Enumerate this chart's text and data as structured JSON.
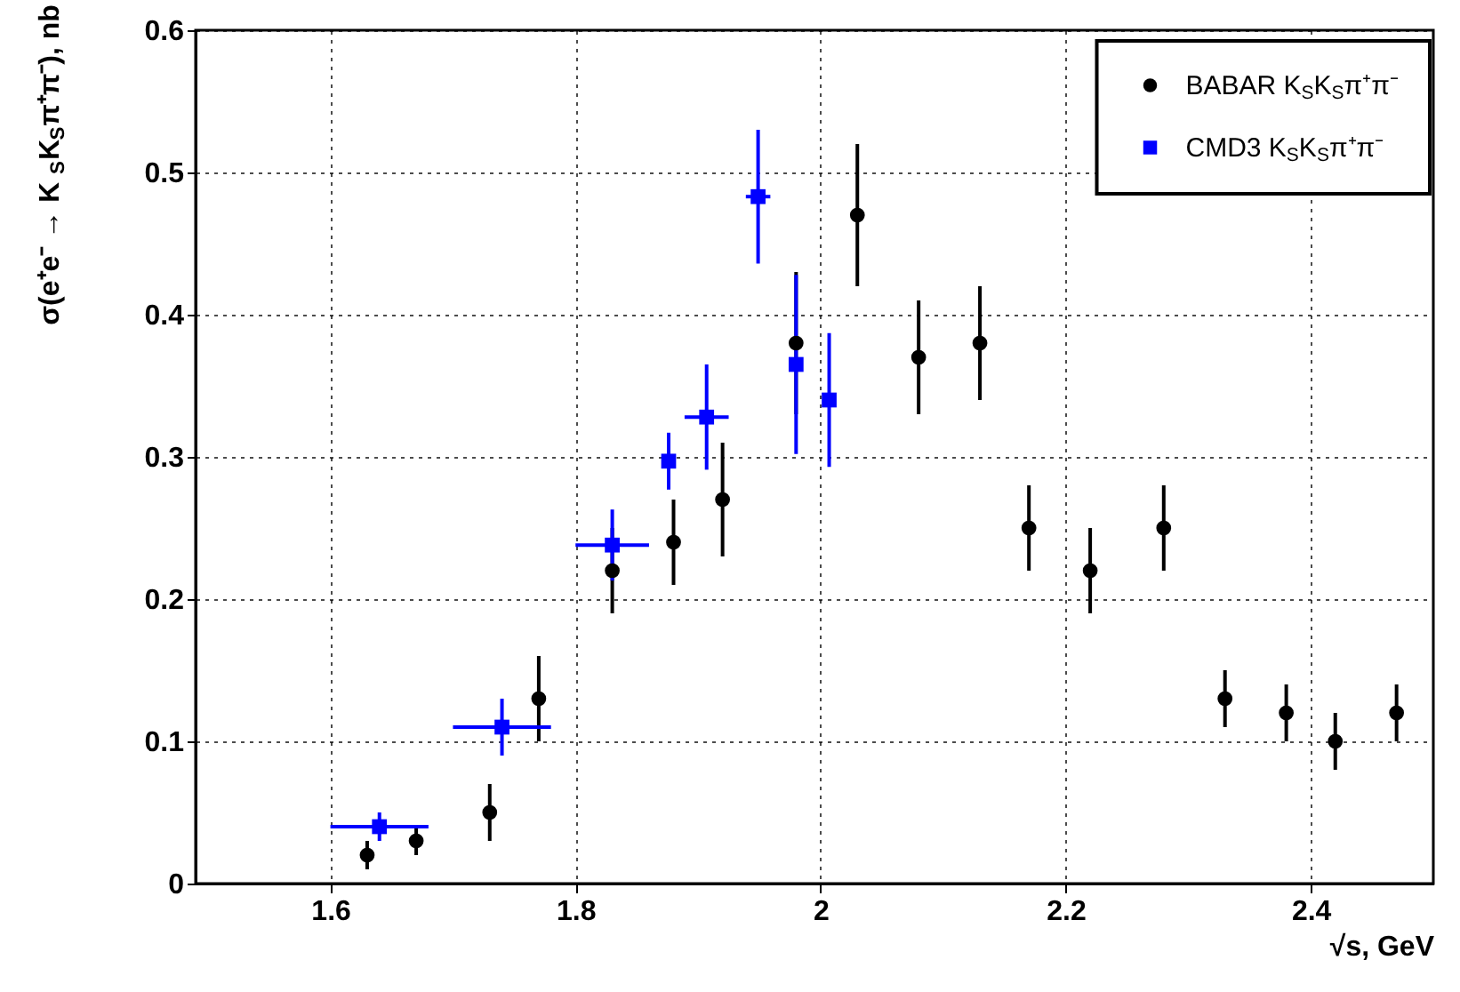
{
  "chart_data": {
    "type": "scatter",
    "xlabel": "√s, GeV",
    "ylabel": "σ(e⁺e⁻ → K$_{S}$K$_{S}$π⁺π⁻), nb",
    "xlim": [
      1.49,
      2.5
    ],
    "xticks": [
      1.6,
      1.8,
      2,
      2.2,
      2.4
    ],
    "ylim": [
      0,
      0.6
    ],
    "yticks": [
      0,
      0.1,
      0.2,
      0.3,
      0.4,
      0.5,
      0.6
    ],
    "grid": true,
    "legend": "top right",
    "series": [
      {
        "name": "BABAR K$_{S}$K$_{S}$π⁺π⁻",
        "color": "#000000",
        "marker": "circle",
        "x": [
          1.63,
          1.67,
          1.73,
          1.77,
          1.83,
          1.88,
          1.92,
          1.98,
          2.03,
          2.08,
          2.13,
          2.17,
          2.22,
          2.28,
          2.33,
          2.38,
          2.42,
          2.47
        ],
        "values": [
          0.02,
          0.03,
          0.05,
          0.13,
          0.22,
          0.24,
          0.27,
          0.38,
          0.47,
          0.37,
          0.38,
          0.25,
          0.22,
          0.25,
          0.13,
          0.12,
          0.1,
          0.12
        ],
        "errors": [
          0.01,
          0.01,
          0.02,
          0.03,
          0.03,
          0.03,
          0.04,
          0.05,
          0.05,
          0.04,
          0.04,
          0.03,
          0.03,
          0.03,
          0.02,
          0.02,
          0.02,
          0.02
        ]
      },
      {
        "name": "CMD3 K$_{S}$K$_{S}$π⁺π⁻",
        "color": "#0000ff",
        "marker": "square",
        "x": [
          1.64,
          1.74,
          1.83,
          1.876,
          1.907,
          1.949,
          1.98,
          2.007
        ],
        "values": [
          0.04,
          0.11,
          0.238,
          0.297,
          0.328,
          0.483,
          0.365,
          0.34
        ],
        "errors": [
          0.01,
          0.02,
          0.025,
          0.02,
          0.037,
          0.047,
          0.063,
          0.047
        ],
        "xerrors": [
          0.04,
          0.04,
          0.03,
          null,
          0.018,
          0.01,
          null,
          null
        ]
      }
    ]
  }
}
